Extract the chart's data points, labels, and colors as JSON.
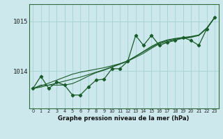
{
  "title": "Graphe pression niveau de la mer (hPa)",
  "bg_color": "#cce8ec",
  "grid_color": "#aad4d8",
  "line_color": "#1a5c2a",
  "x_labels": [
    "0",
    "1",
    "2",
    "3",
    "4",
    "5",
    "6",
    "7",
    "8",
    "9",
    "10",
    "11",
    "12",
    "13",
    "14",
    "15",
    "16",
    "17",
    "18",
    "19",
    "20",
    "21",
    "22",
    "23"
  ],
  "yticks": [
    1014,
    1015
  ],
  "ylim": [
    1013.25,
    1015.35
  ],
  "xlim": [
    -0.5,
    23.5
  ],
  "main_data": [
    1013.65,
    1013.9,
    1013.65,
    1013.78,
    1013.72,
    1013.52,
    1013.52,
    1013.68,
    1013.82,
    1013.84,
    1014.05,
    1014.05,
    1014.2,
    1014.72,
    1014.52,
    1014.72,
    1014.52,
    1014.58,
    1014.62,
    1014.68,
    1014.62,
    1014.52,
    1014.85,
    1015.08
  ],
  "smooth1": [
    1013.65,
    1013.72,
    1013.72,
    1013.72,
    1013.72,
    1013.75,
    1013.82,
    1013.9,
    1013.97,
    1014.02,
    1014.08,
    1014.14,
    1014.2,
    1014.3,
    1014.4,
    1014.5,
    1014.58,
    1014.63,
    1014.66,
    1014.68,
    1014.7,
    1014.73,
    1014.87,
    1015.08
  ],
  "smooth2": [
    1013.65,
    1013.68,
    1013.72,
    1013.76,
    1013.8,
    1013.84,
    1013.88,
    1013.93,
    1013.98,
    1014.03,
    1014.09,
    1014.15,
    1014.21,
    1014.3,
    1014.39,
    1014.48,
    1014.57,
    1014.62,
    1014.65,
    1014.67,
    1014.69,
    1014.72,
    1014.86,
    1015.08
  ],
  "smooth3": [
    1013.65,
    1013.7,
    1013.76,
    1013.82,
    1013.88,
    1013.94,
    1013.98,
    1014.01,
    1014.04,
    1014.07,
    1014.11,
    1014.15,
    1014.2,
    1014.28,
    1014.36,
    1014.46,
    1014.55,
    1014.6,
    1014.63,
    1014.66,
    1014.68,
    1014.72,
    1014.86,
    1015.08
  ]
}
